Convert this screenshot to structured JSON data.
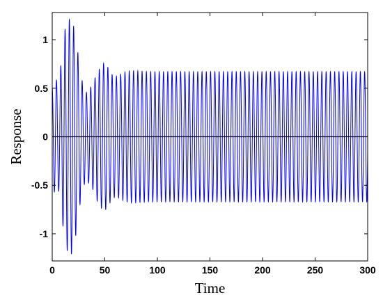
{
  "chart_data": {
    "type": "line",
    "title": "",
    "xlabel": "Time",
    "ylabel": "Response",
    "xlim": [
      0,
      300
    ],
    "ylim": [
      -1.28,
      1.28
    ],
    "grid": false,
    "legend": "none",
    "xticks": [
      0,
      50,
      100,
      150,
      200,
      250,
      300
    ],
    "xtick_labels": [
      "0",
      "50",
      "100",
      "150",
      "200",
      "250",
      "300"
    ],
    "yticks": [
      1,
      0.5,
      0,
      -0.5,
      -1
    ],
    "ytick_labels": [
      "1",
      "0.5",
      "0",
      "-0.5",
      "-1"
    ],
    "reference_line": {
      "y": 0,
      "color": "#000000"
    },
    "series": [
      {
        "color": "#0000ff",
        "oscillation_period": 4.07,
        "envelope_t": [
          0,
          3,
          6,
          9,
          12,
          15,
          18,
          21,
          24,
          27,
          30,
          33,
          36,
          39,
          42,
          45,
          48,
          51,
          54,
          57,
          60,
          63,
          66,
          70,
          75,
          80,
          90,
          100,
          300
        ],
        "envelope_amplitude": [
          0.5,
          0.6,
          0.55,
          0.8,
          1.1,
          1.2,
          1.22,
          1.12,
          0.9,
          0.65,
          0.5,
          0.45,
          0.5,
          0.55,
          0.65,
          0.7,
          0.76,
          0.75,
          0.7,
          0.64,
          0.62,
          0.63,
          0.65,
          0.67,
          0.68,
          0.68,
          0.67,
          0.67,
          0.67
        ]
      }
    ]
  }
}
